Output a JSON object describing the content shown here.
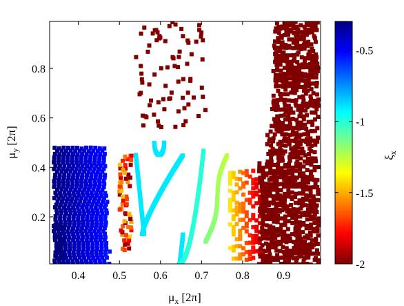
{
  "chart_data": {
    "type": "scatter",
    "title": "",
    "xlabel": {
      "base": "μ",
      "sub": "x",
      "unit": "[2π]"
    },
    "ylabel": {
      "base": "μ",
      "sub": "y",
      "unit": "[2π]"
    },
    "xlim": [
      0.33,
      0.99
    ],
    "ylim": [
      0.01,
      0.99
    ],
    "xticks": [
      0.4,
      0.5,
      0.6,
      0.7,
      0.8,
      0.9
    ],
    "xtick_labels": [
      "0.4",
      "0.5",
      "0.6",
      "0.7",
      "0.8",
      "0.9"
    ],
    "yticks": [
      0.2,
      0.4,
      0.6,
      0.8
    ],
    "ytick_labels": [
      "0.2",
      "0.4",
      "0.6",
      "0.8"
    ],
    "grid": false,
    "colorbar": {
      "label": {
        "base": "ξ",
        "sub": "x"
      },
      "range": [
        -2.0,
        -0.3
      ],
      "ticks": [
        -0.5,
        -1.0,
        -1.5,
        -2.0
      ],
      "tick_labels": [
        "-0.5",
        "-1",
        "-1.5",
        "-2"
      ],
      "colormap": "jet",
      "colors": [
        "#800000",
        "#ff0000",
        "#ff8000",
        "#ffff00",
        "#80ff80",
        "#00ffff",
        "#0080ff",
        "#0000ff",
        "#000080"
      ]
    },
    "regions": [
      {
        "name": "left block",
        "x": [
          0.34,
          0.475
        ],
        "y": [
          0.01,
          0.49
        ],
        "value_range": [
          -0.3,
          -0.55
        ]
      },
      {
        "name": "edge band",
        "x": [
          0.5,
          0.53
        ],
        "y": [
          0.07,
          0.45
        ],
        "value_range": [
          -2.0,
          -1.4
        ]
      },
      {
        "name": "U curve",
        "x": [
          0.535,
          0.655
        ],
        "y": [
          0.01,
          0.45
        ],
        "value": -0.9
      },
      {
        "name": "small loop",
        "x": [
          0.585,
          0.61
        ],
        "y": [
          0.44,
          0.5
        ],
        "value": -0.9
      },
      {
        "name": "middle curve",
        "x": [
          0.64,
          0.705
        ],
        "y": [
          0.01,
          0.47
        ],
        "value": -1.0
      },
      {
        "name": "right curve",
        "x": [
          0.71,
          0.77
        ],
        "y": [
          0.1,
          0.45
        ],
        "value": -1.15
      },
      {
        "name": "fan region",
        "x": [
          0.77,
          0.86
        ],
        "y": [
          0.03,
          0.39
        ],
        "value_range": [
          -2.0,
          -1.4
        ]
      },
      {
        "name": "right dense block",
        "x": [
          0.85,
          0.985
        ],
        "y": [
          0.01,
          0.99
        ],
        "value": -2.0
      },
      {
        "name": "sparse upper scatter",
        "x": [
          0.54,
          0.71
        ],
        "y": [
          0.55,
          0.99
        ],
        "value": -2.0
      }
    ]
  }
}
